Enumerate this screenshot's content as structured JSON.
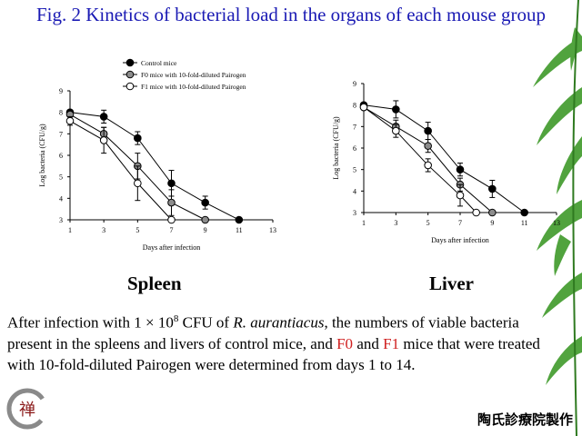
{
  "slide": {
    "title": "Fig. 2 Kinetics of bacterial load in the organs of each mouse group",
    "caption": {
      "part1": "After infection with 1 × 10",
      "sup": "8",
      "part2": " CFU of ",
      "organism": "R. aurantiacus",
      "part3": ", the numbers of viable bacteria present in the spleens and livers of control mice, and ",
      "f0": "F0",
      "and": " and ",
      "f1": "F1",
      "part4": " mice that were treated with 10-fold-diluted Pairogen were determined from days 1 to 14."
    },
    "footer": "陶氏診療院製作",
    "logo_char": "禅",
    "colors": {
      "title": "#1a1ab4",
      "highlight": "#d02020",
      "leaf": "#3f9a2a"
    }
  },
  "chart_data": [
    {
      "type": "line",
      "panel_label": "Spleen",
      "xlabel": "Days after infection",
      "ylabel": "Log bacteria (CFU/g)",
      "xlim": [
        1,
        13
      ],
      "ylim": [
        3,
        9
      ],
      "xticks": [
        1,
        3,
        5,
        7,
        9,
        11,
        13
      ],
      "yticks": [
        3,
        4,
        5,
        6,
        7,
        8,
        9
      ],
      "legend_position": "top",
      "grid": false,
      "series": [
        {
          "name": "Control mice",
          "marker": "filled-black",
          "x": [
            1,
            3,
            5,
            7,
            9,
            11
          ],
          "y": [
            8.0,
            7.8,
            6.8,
            4.7,
            3.8,
            3.0
          ],
          "err": [
            0.1,
            0.3,
            0.3,
            0.6,
            0.3,
            0
          ]
        },
        {
          "name": "F0 mice with 10-fold-diluted Pairogen",
          "marker": "filled-gray",
          "x": [
            1,
            3,
            5,
            7,
            9
          ],
          "y": [
            7.9,
            7.0,
            5.5,
            3.8,
            3.0
          ],
          "err": [
            0.1,
            0.3,
            0.6,
            0.6,
            0
          ]
        },
        {
          "name": "F1 mice with 10-fold-diluted Pairogen",
          "marker": "open-white",
          "x": [
            1,
            3,
            5,
            7
          ],
          "y": [
            7.6,
            6.7,
            4.7,
            3.0
          ],
          "err": [
            0.2,
            0.6,
            0.8,
            0
          ]
        }
      ]
    },
    {
      "type": "line",
      "panel_label": "Liver",
      "xlabel": "Days after infection",
      "ylabel": "Log bacteria (CFU/g)",
      "xlim": [
        1,
        13
      ],
      "ylim": [
        3,
        9
      ],
      "xticks": [
        1,
        3,
        5,
        7,
        9,
        11,
        13
      ],
      "yticks": [
        3,
        4,
        5,
        6,
        7,
        8,
        9
      ],
      "legend_position": "none",
      "grid": false,
      "series": [
        {
          "name": "Control mice",
          "marker": "filled-black",
          "x": [
            1,
            3,
            5,
            7,
            9,
            11
          ],
          "y": [
            8.0,
            7.8,
            6.8,
            5.0,
            4.1,
            3.0
          ],
          "err": [
            0.1,
            0.4,
            0.4,
            0.3,
            0.4,
            0
          ]
        },
        {
          "name": "F0 mice with 10-fold-diluted Pairogen",
          "marker": "filled-gray",
          "x": [
            1,
            3,
            5,
            7,
            9
          ],
          "y": [
            7.9,
            7.0,
            6.1,
            4.3,
            3.0
          ],
          "err": [
            0.1,
            0.3,
            0.3,
            0.3,
            0
          ]
        },
        {
          "name": "F1 mice with 10-fold-diluted Pairogen",
          "marker": "open-white",
          "x": [
            1,
            3,
            5,
            7,
            8
          ],
          "y": [
            7.9,
            6.8,
            5.2,
            3.8,
            3.0
          ],
          "err": [
            0.1,
            0.3,
            0.3,
            0.5,
            0
          ]
        }
      ]
    }
  ]
}
